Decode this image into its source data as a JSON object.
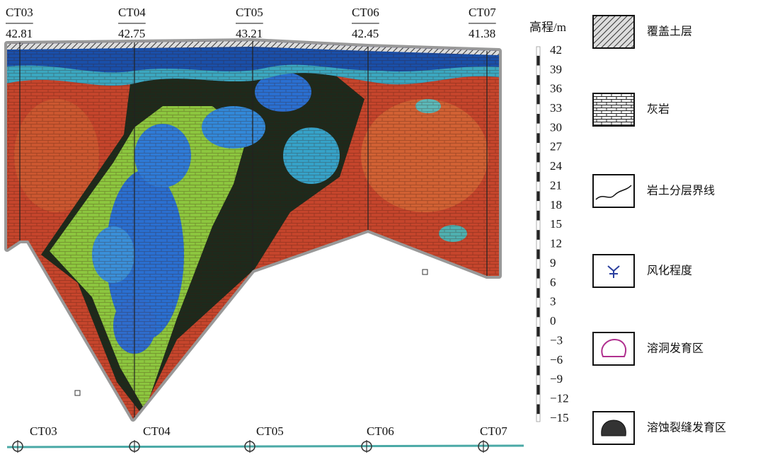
{
  "boreholes": [
    {
      "name": "CT03",
      "elevation": 42.81
    },
    {
      "name": "CT04",
      "elevation": 42.75
    },
    {
      "name": "CT05",
      "elevation": 43.21
    },
    {
      "name": "CT06",
      "elevation": 42.45
    },
    {
      "name": "CT07",
      "elevation": 41.38
    }
  ],
  "elevation_scale": {
    "title": "高程/m",
    "ticks": [
      "42",
      "39",
      "36",
      "33",
      "30",
      "27",
      "24",
      "21",
      "18",
      "15",
      "12",
      "9",
      "6",
      "3",
      "0",
      "−3",
      "−6",
      "−9",
      "−12",
      "−15"
    ]
  },
  "legend": [
    {
      "label": "覆盖土层"
    },
    {
      "label": "灰岩"
    },
    {
      "label": "岩土分层界线"
    },
    {
      "label": "风化程度"
    },
    {
      "label": "溶洞发育区"
    },
    {
      "label": "溶蚀裂缝发育区"
    }
  ],
  "plan_line": {
    "labels": [
      "CT03",
      "CT04",
      "CT05",
      "CT06",
      "CT07"
    ]
  }
}
